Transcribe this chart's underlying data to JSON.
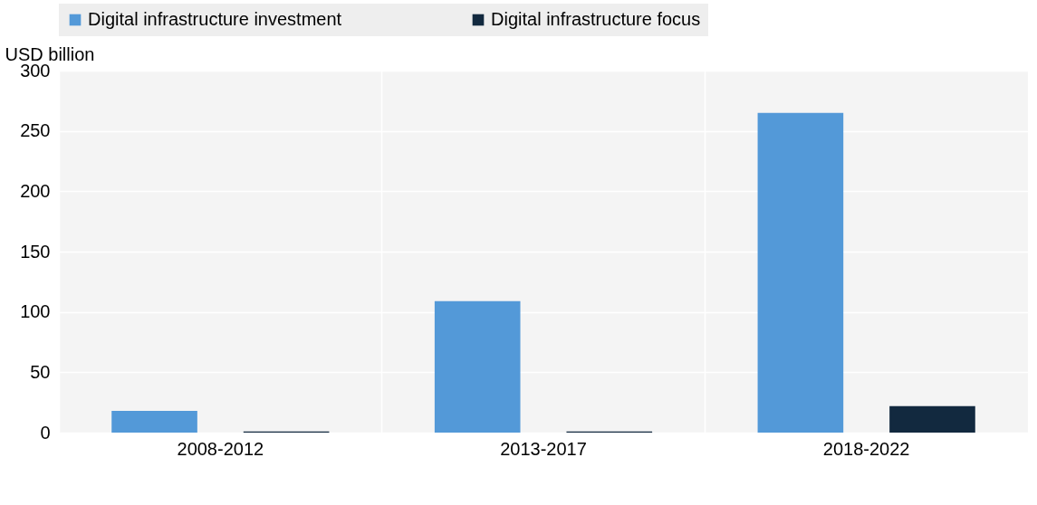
{
  "chart_data": {
    "type": "bar",
    "ylabel": "USD billion",
    "categories": [
      "2008-2012",
      "2013-2017",
      "2018-2022"
    ],
    "series": [
      {
        "name": "Digital infrastructure investment",
        "color": "#5399d8",
        "values": [
          18,
          109,
          265
        ]
      },
      {
        "name": "Digital infrastructure focus",
        "color": "#12293f",
        "values": [
          1,
          1,
          22
        ]
      }
    ],
    "ylim": [
      0,
      300
    ],
    "yticks": [
      0,
      50,
      100,
      150,
      200,
      250,
      300
    ],
    "grid": true,
    "legend": "top"
  }
}
